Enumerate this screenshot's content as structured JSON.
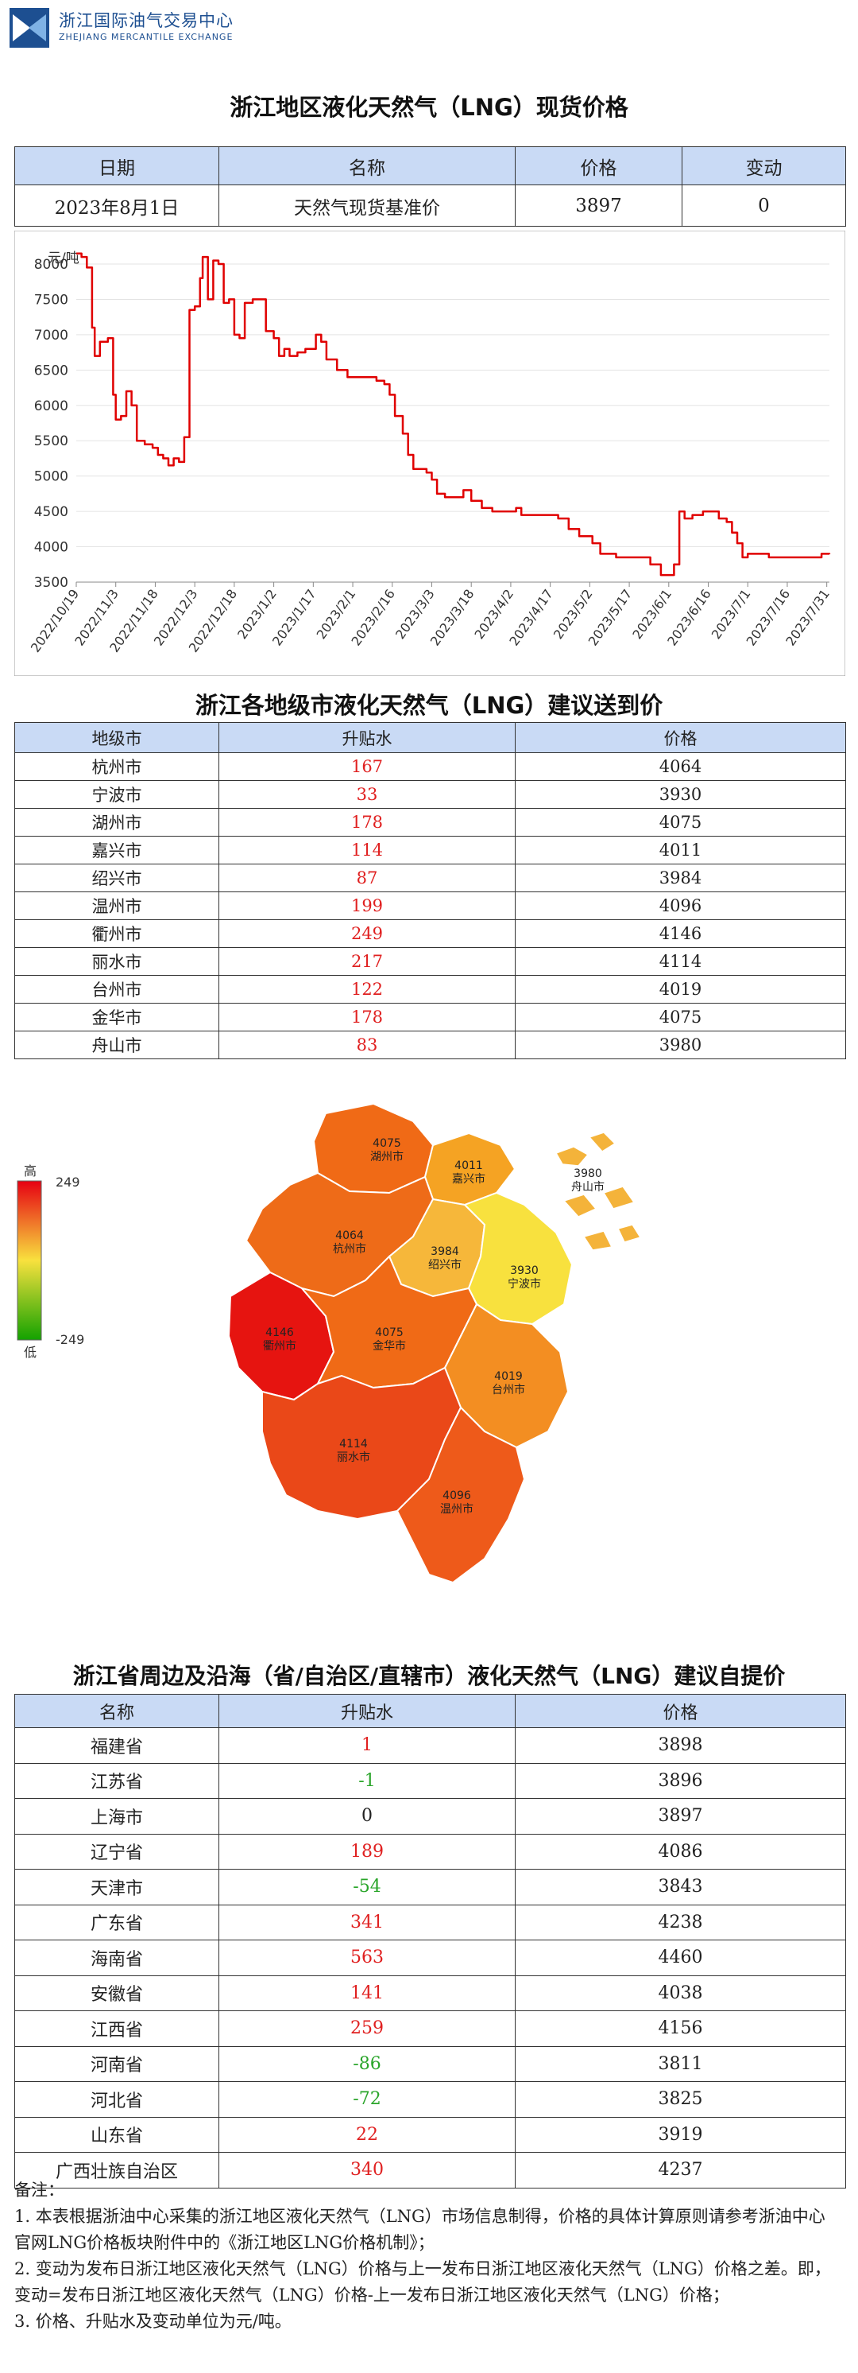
{
  "header": {
    "logo_cn": "浙江国际油气交易中心",
    "logo_en": "ZHEJIANG MERCANTILE EXCHANGE"
  },
  "spot": {
    "title": "浙江地区液化天然气（LNG）现货价格",
    "columns": [
      "日期",
      "名称",
      "价格",
      "变动"
    ],
    "row": [
      "2023年8月1日",
      "天然气现货基准价",
      "3897",
      "0"
    ]
  },
  "chart_data": {
    "type": "line",
    "ylabel": "元/吨",
    "ylim": [
      3500,
      8000
    ],
    "yticks": [
      3500,
      4000,
      4500,
      5000,
      5500,
      6000,
      6500,
      7000,
      7500,
      8000
    ],
    "xlim": [
      "2022-10-19",
      "2023-08-01"
    ],
    "xticks": [
      "2022/10/19",
      "2022/11/3",
      "2022/11/18",
      "2022/12/3",
      "2022/12/18",
      "2023/1/2",
      "2023/1/17",
      "2023/2/1",
      "2023/2/16",
      "2023/3/3",
      "2023/3/18",
      "2023/4/2",
      "2023/4/17",
      "2023/5/2",
      "2023/5/17",
      "2023/6/1",
      "2023/6/16",
      "2023/7/1",
      "2023/7/16",
      "2023/7/31"
    ],
    "color": "#e00000",
    "series": [
      {
        "points": [
          [
            "2022-10-19",
            8150
          ],
          [
            "2022-10-21",
            8100
          ],
          [
            "2022-10-23",
            7950
          ],
          [
            "2022-10-25",
            7100
          ],
          [
            "2022-10-26",
            6700
          ],
          [
            "2022-10-28",
            6900
          ],
          [
            "2022-10-31",
            6950
          ],
          [
            "2022-11-02",
            6150
          ],
          [
            "2022-11-03",
            5800
          ],
          [
            "2022-11-05",
            5850
          ],
          [
            "2022-11-07",
            6200
          ],
          [
            "2022-11-09",
            6000
          ],
          [
            "2022-11-11",
            5500
          ],
          [
            "2022-11-14",
            5450
          ],
          [
            "2022-11-17",
            5400
          ],
          [
            "2022-11-19",
            5300
          ],
          [
            "2022-11-21",
            5250
          ],
          [
            "2022-11-23",
            5150
          ],
          [
            "2022-11-25",
            5250
          ],
          [
            "2022-11-27",
            5200
          ],
          [
            "2022-11-29",
            5550
          ],
          [
            "2022-12-01",
            7350
          ],
          [
            "2022-12-03",
            7400
          ],
          [
            "2022-12-05",
            7800
          ],
          [
            "2022-12-06",
            8100
          ],
          [
            "2022-12-08",
            7500
          ],
          [
            "2022-12-10",
            8050
          ],
          [
            "2022-12-12",
            8000
          ],
          [
            "2022-12-14",
            7450
          ],
          [
            "2022-12-16",
            7500
          ],
          [
            "2022-12-18",
            7000
          ],
          [
            "2022-12-20",
            6950
          ],
          [
            "2022-12-22",
            7450
          ],
          [
            "2022-12-25",
            7500
          ],
          [
            "2022-12-28",
            7500
          ],
          [
            "2022-12-30",
            7050
          ],
          [
            "2023-01-02",
            6950
          ],
          [
            "2023-01-04",
            6700
          ],
          [
            "2023-01-06",
            6800
          ],
          [
            "2023-01-08",
            6700
          ],
          [
            "2023-01-11",
            6750
          ],
          [
            "2023-01-14",
            6800
          ],
          [
            "2023-01-16",
            6800
          ],
          [
            "2023-01-18",
            7000
          ],
          [
            "2023-01-20",
            6900
          ],
          [
            "2023-01-22",
            6650
          ],
          [
            "2023-01-26",
            6500
          ],
          [
            "2023-01-30",
            6400
          ],
          [
            "2023-02-03",
            6400
          ],
          [
            "2023-02-07",
            6400
          ],
          [
            "2023-02-10",
            6350
          ],
          [
            "2023-02-13",
            6300
          ],
          [
            "2023-02-15",
            6150
          ],
          [
            "2023-02-17",
            5850
          ],
          [
            "2023-02-20",
            5600
          ],
          [
            "2023-02-22",
            5300
          ],
          [
            "2023-02-24",
            5100
          ],
          [
            "2023-03-01",
            5050
          ],
          [
            "2023-03-03",
            4950
          ],
          [
            "2023-03-05",
            4750
          ],
          [
            "2023-03-08",
            4700
          ],
          [
            "2023-03-12",
            4700
          ],
          [
            "2023-03-15",
            4800
          ],
          [
            "2023-03-18",
            4650
          ],
          [
            "2023-03-22",
            4550
          ],
          [
            "2023-03-26",
            4500
          ],
          [
            "2023-04-01",
            4500
          ],
          [
            "2023-04-04",
            4550
          ],
          [
            "2023-04-06",
            4450
          ],
          [
            "2023-04-12",
            4450
          ],
          [
            "2023-04-16",
            4450
          ],
          [
            "2023-04-20",
            4400
          ],
          [
            "2023-04-24",
            4250
          ],
          [
            "2023-04-28",
            4150
          ],
          [
            "2023-05-03",
            4050
          ],
          [
            "2023-05-06",
            3900
          ],
          [
            "2023-05-12",
            3850
          ],
          [
            "2023-05-18",
            3850
          ],
          [
            "2023-05-22",
            3850
          ],
          [
            "2023-05-25",
            3750
          ],
          [
            "2023-05-29",
            3600
          ],
          [
            "2023-06-01",
            3600
          ],
          [
            "2023-06-03",
            3750
          ],
          [
            "2023-06-05",
            4500
          ],
          [
            "2023-06-07",
            4400
          ],
          [
            "2023-06-10",
            4450
          ],
          [
            "2023-06-14",
            4500
          ],
          [
            "2023-06-17",
            4500
          ],
          [
            "2023-06-20",
            4400
          ],
          [
            "2023-06-23",
            4350
          ],
          [
            "2023-06-25",
            4200
          ],
          [
            "2023-06-27",
            4050
          ],
          [
            "2023-06-29",
            3850
          ],
          [
            "2023-07-01",
            3900
          ],
          [
            "2023-07-05",
            3900
          ],
          [
            "2023-07-09",
            3850
          ],
          [
            "2023-07-13",
            3850
          ],
          [
            "2023-07-17",
            3850
          ],
          [
            "2023-07-21",
            3850
          ],
          [
            "2023-07-25",
            3850
          ],
          [
            "2023-07-29",
            3900
          ],
          [
            "2023-08-01",
            3897
          ]
        ]
      }
    ]
  },
  "cities": {
    "title": "浙江各地级市液化天然气（LNG）建议送到价",
    "columns": [
      "地级市",
      "升贴水",
      "价格"
    ],
    "rows": [
      [
        "杭州市",
        "167",
        "4064"
      ],
      [
        "宁波市",
        "33",
        "3930"
      ],
      [
        "湖州市",
        "178",
        "4075"
      ],
      [
        "嘉兴市",
        "114",
        "4011"
      ],
      [
        "绍兴市",
        "87",
        "3984"
      ],
      [
        "温州市",
        "199",
        "4096"
      ],
      [
        "衢州市",
        "249",
        "4146"
      ],
      [
        "丽水市",
        "217",
        "4114"
      ],
      [
        "台州市",
        "122",
        "4019"
      ],
      [
        "金华市",
        "178",
        "4075"
      ],
      [
        "舟山市",
        "83",
        "3980"
      ]
    ]
  },
  "map": {
    "regions": [
      {
        "name": "湖州市",
        "price": "4075",
        "color": "#f06a16"
      },
      {
        "name": "嘉兴市",
        "price": "4011",
        "color": "#f5a323"
      },
      {
        "name": "杭州市",
        "price": "4064",
        "color": "#ee6b18"
      },
      {
        "name": "绍兴市",
        "price": "3984",
        "color": "#f6b73a"
      },
      {
        "name": "宁波市",
        "price": "3930",
        "color": "#f8e13e"
      },
      {
        "name": "舟山市",
        "price": "3980",
        "color": "#f4b33a"
      },
      {
        "name": "衢州市",
        "price": "4146",
        "color": "#e61410"
      },
      {
        "name": "金华市",
        "price": "4075",
        "color": "#f06a16"
      },
      {
        "name": "台州市",
        "price": "4019",
        "color": "#f38e22"
      },
      {
        "name": "丽水市",
        "price": "4114",
        "color": "#ea4818"
      },
      {
        "name": "温州市",
        "price": "4096",
        "color": "#ee5a1a"
      }
    ],
    "legend": {
      "high": "高",
      "low": "低",
      "max": "249",
      "min": "-249"
    }
  },
  "coastal": {
    "title": "浙江省周边及沿海（省/自治区/直辖市）液化天然气（LNG）建议自提价",
    "columns": [
      "名称",
      "升贴水",
      "价格"
    ],
    "rows": [
      [
        "福建省",
        "1",
        "3898"
      ],
      [
        "江苏省",
        "-1",
        "3896"
      ],
      [
        "上海市",
        "0",
        "3897"
      ],
      [
        "辽宁省",
        "189",
        "4086"
      ],
      [
        "天津市",
        "-54",
        "3843"
      ],
      [
        "广东省",
        "341",
        "4238"
      ],
      [
        "海南省",
        "563",
        "4460"
      ],
      [
        "安徽省",
        "141",
        "4038"
      ],
      [
        "江西省",
        "259",
        "4156"
      ],
      [
        "河南省",
        "-86",
        "3811"
      ],
      [
        "河北省",
        "-72",
        "3825"
      ],
      [
        "山东省",
        "22",
        "3919"
      ],
      [
        "广西壮族自治区",
        "340",
        "4237"
      ]
    ]
  },
  "notes": {
    "title": "备注：",
    "n1": "1. 本表根据浙油中心采集的浙江地区液化天然气（LNG）市场信息制得，价格的具体计算原则请参考浙油中心官网LNG价格板块附件中的《浙江地区LNG价格机制》；",
    "n2": "2. 变动为发布日浙江地区液化天然气（LNG）价格与上一发布日浙江地区液化天然气（LNG）价格之差。即，变动=发布日浙江地区液化天然气（LNG）价格-上一发布日浙江地区液化天然气（LNG）价格；",
    "n3": "3. 价格、升贴水及变动单位为元/吨。"
  }
}
